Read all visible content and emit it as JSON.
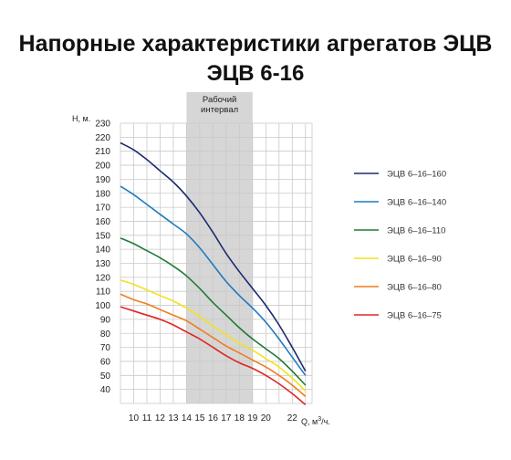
{
  "title": "Напорные характеристики агрегатов ЭЦВ",
  "subtitle": "ЭЦВ 6-16",
  "chart_data": {
    "type": "line",
    "xlabel": "Q, м",
    "xlabel_sup": "3",
    "xlabel_suffix": "/ч.",
    "ylabel": "Н, м.",
    "xlim": [
      9,
      23.5
    ],
    "ylim": [
      30,
      230
    ],
    "xticks": [
      10,
      11,
      12,
      13,
      14,
      15,
      16,
      17,
      18,
      19,
      20,
      22
    ],
    "yticks": [
      40,
      50,
      60,
      70,
      80,
      90,
      100,
      110,
      120,
      130,
      140,
      150,
      160,
      170,
      180,
      190,
      200,
      210,
      220,
      230
    ],
    "grid": true,
    "legend_position": "right",
    "band": {
      "x": [
        14,
        19
      ],
      "label_line1": "Рабочий",
      "label_line2": "интервал"
    },
    "series": [
      {
        "name": "ЭЦВ 6–16–160",
        "color": "#1c2a6e",
        "x": [
          9,
          10,
          11,
          12,
          13,
          14,
          15,
          16,
          17,
          18,
          19,
          20,
          21,
          22,
          23
        ],
        "y": [
          216,
          211,
          204,
          196,
          188,
          178,
          166,
          152,
          137,
          124,
          112,
          100,
          86,
          70,
          53
        ]
      },
      {
        "name": "ЭЦВ 6–16–140",
        "color": "#1f7bbf",
        "x": [
          9,
          10,
          11,
          12,
          13,
          14,
          15,
          16,
          17,
          18,
          19,
          20,
          21,
          22,
          23
        ],
        "y": [
          185,
          179,
          172,
          165,
          158,
          151,
          141,
          129,
          117,
          107,
          98,
          88,
          76,
          63,
          50
        ]
      },
      {
        "name": "ЭЦВ 6–16–110",
        "color": "#1f7a34",
        "x": [
          9,
          10,
          11,
          12,
          13,
          14,
          15,
          16,
          17,
          18,
          19,
          20,
          21,
          22,
          23
        ],
        "y": [
          148,
          144,
          139,
          134,
          128,
          121,
          112,
          102,
          93,
          84,
          76,
          69,
          62,
          53,
          43
        ]
      },
      {
        "name": "ЭЦВ 6–16–90",
        "color": "#f2e21c",
        "x": [
          9,
          10,
          11,
          12,
          13,
          14,
          15,
          16,
          17,
          18,
          19,
          20,
          21,
          22,
          23
        ],
        "y": [
          118,
          115,
          111,
          107,
          103,
          98,
          92,
          85,
          79,
          73,
          68,
          62,
          56,
          48,
          39
        ]
      },
      {
        "name": "ЭЦВ 6–16–80",
        "color": "#f07d1e",
        "x": [
          9,
          10,
          11,
          12,
          13,
          14,
          15,
          16,
          17,
          18,
          19,
          20,
          21,
          22,
          23
        ],
        "y": [
          108,
          104,
          101,
          97,
          93,
          89,
          83,
          77,
          71,
          66,
          61,
          56,
          50,
          43,
          35
        ]
      },
      {
        "name": "ЭЦВ 6–16–75",
        "color": "#e02525",
        "x": [
          9,
          10,
          11,
          12,
          13,
          14,
          15,
          16,
          17,
          18,
          19,
          20,
          21,
          22,
          23
        ],
        "y": [
          99,
          96,
          93,
          90,
          86,
          81,
          76,
          70,
          64,
          59,
          55,
          50,
          44,
          37,
          29
        ]
      }
    ]
  }
}
